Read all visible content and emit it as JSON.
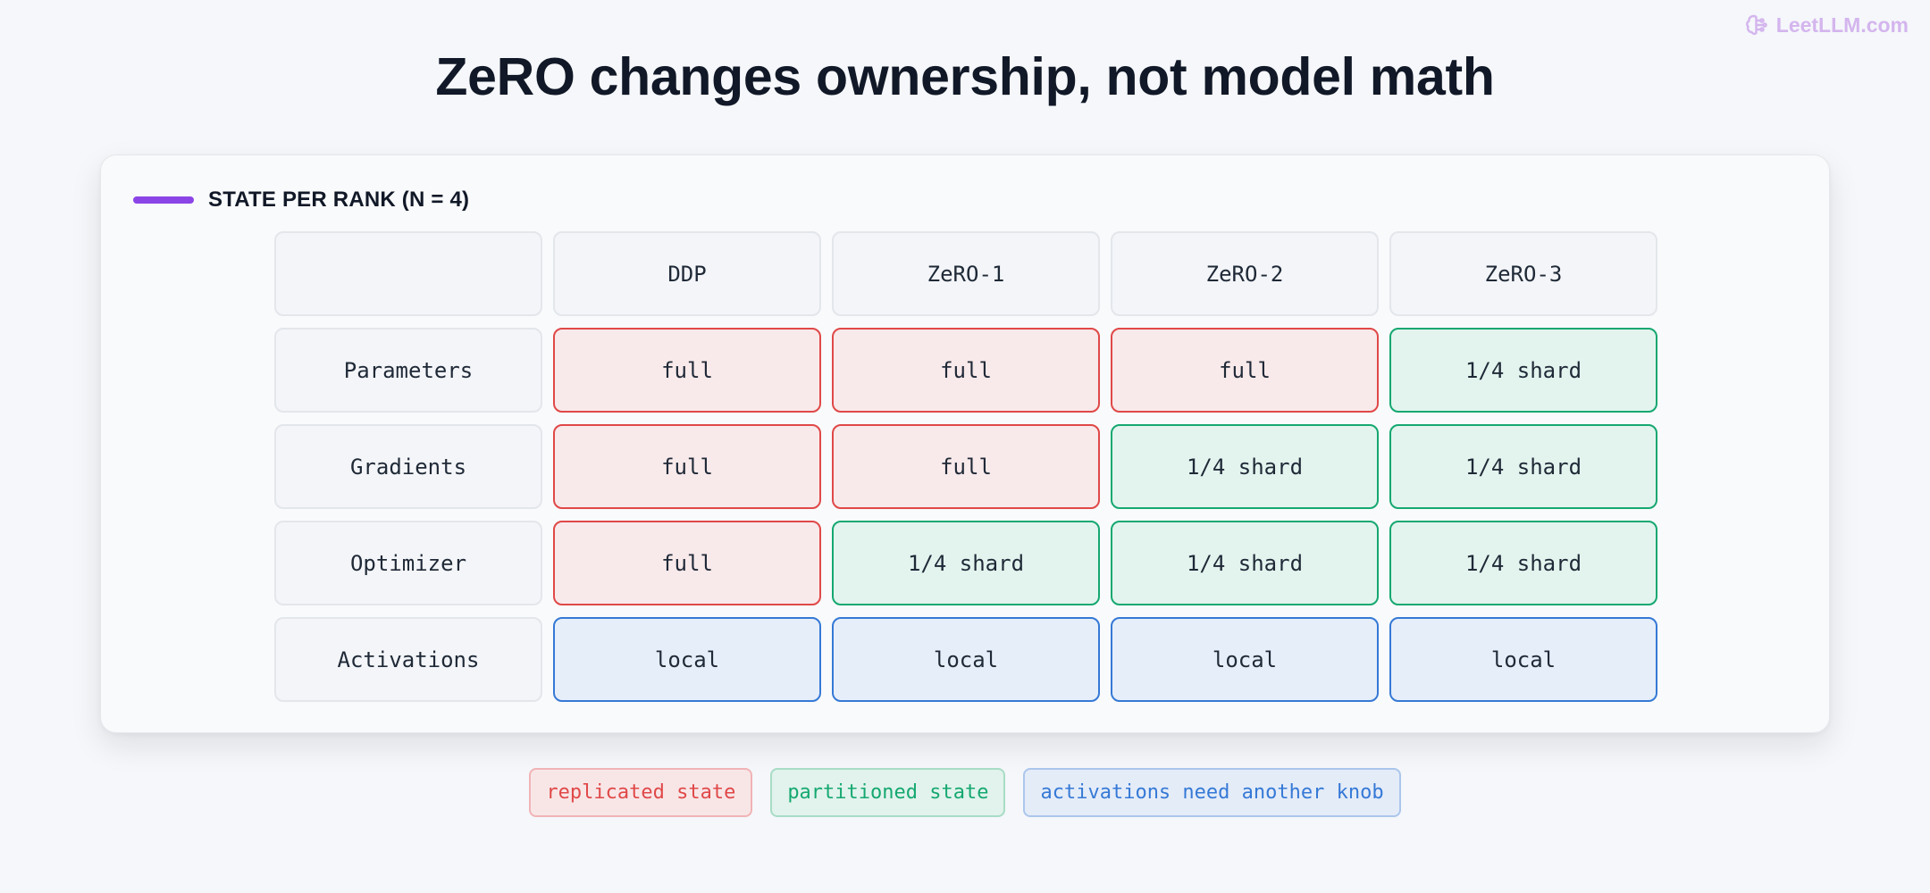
{
  "brand": {
    "name": "LeetLLM.com",
    "icon": "brain-icon",
    "color": "#d4b5ee"
  },
  "title": "ZeRO changes ownership, not model math",
  "section": {
    "label": "STATE PER RANK (N = 4)",
    "accent_color": "#8b45e6"
  },
  "table": {
    "corner": "",
    "columns": [
      "DDP",
      "ZeRO-1",
      "ZeRO-2",
      "ZeRO-3"
    ],
    "rows": [
      {
        "label": "Parameters",
        "cells": [
          {
            "text": "full",
            "kind": "replicated"
          },
          {
            "text": "full",
            "kind": "replicated"
          },
          {
            "text": "full",
            "kind": "replicated"
          },
          {
            "text": "1/4 shard",
            "kind": "partitioned"
          }
        ]
      },
      {
        "label": "Gradients",
        "cells": [
          {
            "text": "full",
            "kind": "replicated"
          },
          {
            "text": "full",
            "kind": "replicated"
          },
          {
            "text": "1/4 shard",
            "kind": "partitioned"
          },
          {
            "text": "1/4 shard",
            "kind": "partitioned"
          }
        ]
      },
      {
        "label": "Optimizer",
        "cells": [
          {
            "text": "full",
            "kind": "replicated"
          },
          {
            "text": "1/4 shard",
            "kind": "partitioned"
          },
          {
            "text": "1/4 shard",
            "kind": "partitioned"
          },
          {
            "text": "1/4 shard",
            "kind": "partitioned"
          }
        ]
      },
      {
        "label": "Activations",
        "cells": [
          {
            "text": "local",
            "kind": "activation"
          },
          {
            "text": "local",
            "kind": "activation"
          },
          {
            "text": "local",
            "kind": "activation"
          },
          {
            "text": "local",
            "kind": "activation"
          }
        ]
      }
    ]
  },
  "legend": [
    {
      "label": "replicated state",
      "kind": "replicated",
      "color": "#e04848"
    },
    {
      "label": "partitioned state",
      "kind": "partitioned",
      "color": "#15a871"
    },
    {
      "label": "activations need another knob",
      "kind": "activation",
      "color": "#3579d6"
    }
  ]
}
